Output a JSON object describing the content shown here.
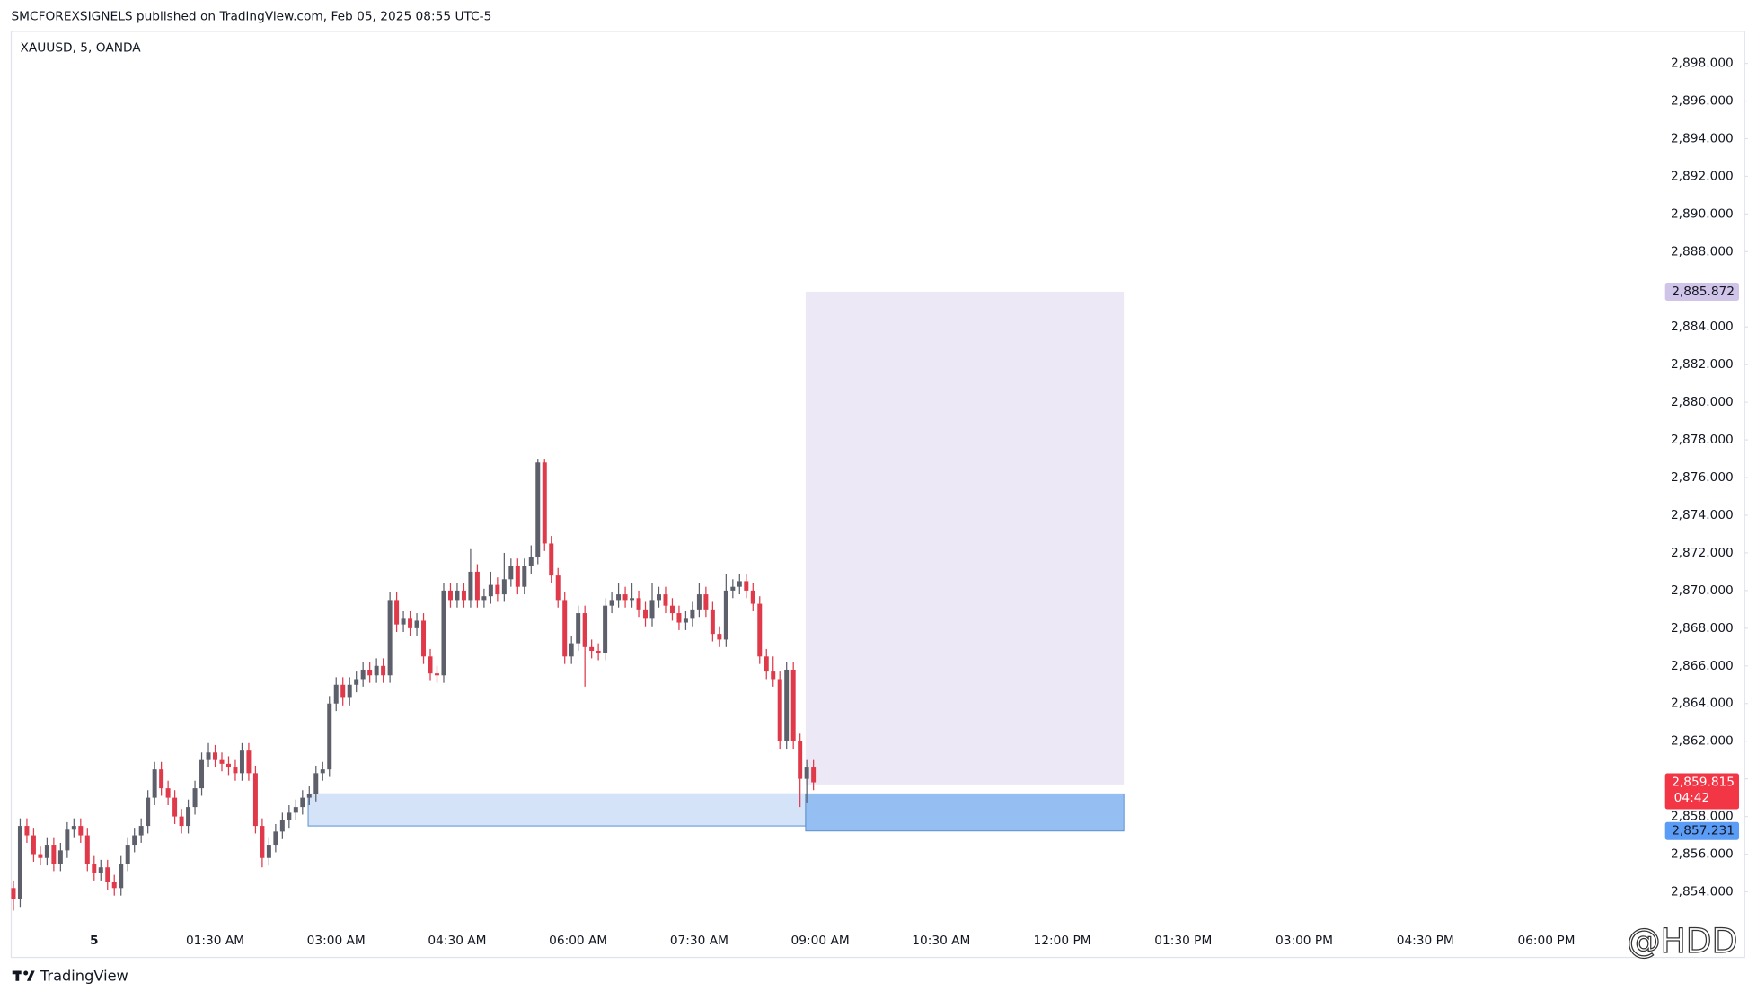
{
  "chart_data": {
    "type": "candlestick",
    "header": "SMCFOREXSIGNELS published on TradingView.com, Feb 05, 2025 08:55 UTC-5",
    "symbol": "XAUUSD, 5, OANDA",
    "footer": "TradingView",
    "watermark": "@HDD",
    "up_color": "#5d606b",
    "down_color": "#e0394a",
    "x_labels": [
      "5",
      "01:30 AM",
      "03:00 AM",
      "04:30 AM",
      "06:00 AM",
      "07:30 AM",
      "09:00 AM",
      "10:30 AM",
      "12:00 PM",
      "01:30 PM",
      "03:00 PM",
      "04:30 PM",
      "06:00 PM"
    ],
    "ylim": [
      2852.3,
      2899.7
    ],
    "yticks": [
      {
        "value": 2854,
        "label": "2,854.000"
      },
      {
        "value": 2856,
        "label": "2,856.000"
      },
      {
        "value": 2858,
        "label": "2,858.000"
      },
      {
        "value": 2860,
        "label": "2,860.000"
      },
      {
        "value": 2862,
        "label": "2,862.000"
      },
      {
        "value": 2864,
        "label": "2,864.000"
      },
      {
        "value": 2866,
        "label": "2,866.000"
      },
      {
        "value": 2868,
        "label": "2,868.000"
      },
      {
        "value": 2870,
        "label": "2,870.000"
      },
      {
        "value": 2872,
        "label": "2,872.000"
      },
      {
        "value": 2874,
        "label": "2,874.000"
      },
      {
        "value": 2876,
        "label": "2,876.000"
      },
      {
        "value": 2878,
        "label": "2,878.000"
      },
      {
        "value": 2880,
        "label": "2,880.000"
      },
      {
        "value": 2882,
        "label": "2,882.000"
      },
      {
        "value": 2884,
        "label": "2,884.000"
      },
      {
        "value": 2888,
        "label": "2,888.000"
      },
      {
        "value": 2890,
        "label": "2,890.000"
      },
      {
        "value": 2892,
        "label": "2,892.000"
      },
      {
        "value": 2894,
        "label": "2,894.000"
      },
      {
        "value": 2896,
        "label": "2,896.000"
      },
      {
        "value": 2898,
        "label": "2,898.000"
      }
    ],
    "open": [
      2854.2,
      2853.6,
      2857.5,
      2857.0,
      2856.0,
      2855.8,
      2856.5,
      2855.5,
      2856.2,
      2857.3,
      2857.5,
      2857.0,
      2855.5,
      2855.0,
      2855.3,
      2854.5,
      2854.2,
      2855.5,
      2856.5,
      2857.0,
      2857.5,
      2859.0,
      2860.5,
      2859.5,
      2859.0,
      2858.0,
      2857.5,
      2858.5,
      2859.5,
      2861.0,
      2861.4,
      2861.0,
      2860.8,
      2860.6,
      2860.3,
      2861.5,
      2860.3,
      2857.5,
      2855.8,
      2856.5,
      2857.2,
      2857.8,
      2858.2,
      2858.5,
      2859.0,
      2859.2,
      2860.3,
      2860.5,
      2864.0,
      2865.0,
      2864.3,
      2865.0,
      2865.3,
      2865.8,
      2865.5,
      2866.0,
      2865.5,
      2869.5,
      2868.2,
      2868.5,
      2868.0,
      2868.4,
      2866.5,
      2865.6,
      2865.5,
      2870.0,
      2869.5,
      2870.0,
      2869.5,
      2871.0,
      2869.5,
      2869.7,
      2870.3,
      2869.8,
      2870.6,
      2871.3,
      2870.2,
      2871.3,
      2871.8,
      2876.8,
      2872.5,
      2870.8,
      2869.5,
      2866.5,
      2867.2,
      2868.8,
      2867.0,
      2866.8,
      2866.7,
      2869.2,
      2869.5,
      2869.8,
      2869.5,
      2869.6,
      2869.0,
      2868.5,
      2869.5,
      2869.8,
      2869.2,
      2868.8,
      2868.3,
      2868.5,
      2869.0,
      2869.8,
      2869.0,
      2867.7,
      2867.4,
      2870.0,
      2870.2,
      2870.5,
      2870.0,
      2869.3,
      2866.5,
      2865.7,
      2865.3,
      2862.0,
      2865.8,
      2862.0,
      2860.0,
      2860.6
    ],
    "high": [
      2854.6,
      2857.9,
      2857.9,
      2857.4,
      2856.4,
      2856.9,
      2856.9,
      2856.6,
      2857.7,
      2857.9,
      2857.9,
      2857.4,
      2855.9,
      2855.7,
      2855.7,
      2854.9,
      2855.9,
      2856.9,
      2857.4,
      2857.9,
      2859.4,
      2860.9,
      2860.9,
      2859.9,
      2859.4,
      2858.4,
      2858.9,
      2859.9,
      2861.4,
      2861.9,
      2861.8,
      2861.4,
      2861.2,
      2861.0,
      2861.9,
      2861.9,
      2860.7,
      2857.9,
      2856.9,
      2857.6,
      2858.2,
      2858.6,
      2858.9,
      2859.4,
      2859.6,
      2860.7,
      2860.9,
      2864.4,
      2865.4,
      2865.4,
      2865.4,
      2865.7,
      2866.2,
      2866.2,
      2866.4,
      2866.4,
      2869.9,
      2869.9,
      2868.9,
      2868.9,
      2868.8,
      2868.8,
      2866.9,
      2866.0,
      2870.4,
      2870.4,
      2870.4,
      2870.4,
      2872.2,
      2871.4,
      2870.1,
      2871.0,
      2870.7,
      2872.0,
      2871.7,
      2871.7,
      2871.7,
      2872.4,
      2877.0,
      2877.0,
      2872.9,
      2871.2,
      2869.9,
      2867.6,
      2869.2,
      2869.2,
      2867.4,
      2867.2,
      2869.6,
      2869.9,
      2870.4,
      2870.2,
      2870.4,
      2870.0,
      2869.4,
      2870.4,
      2870.2,
      2870.2,
      2869.6,
      2869.2,
      2868.9,
      2869.4,
      2870.4,
      2870.2,
      2869.4,
      2868.1,
      2870.9,
      2870.6,
      2870.9,
      2870.9,
      2870.4,
      2869.7,
      2866.9,
      2866.5,
      2865.7,
      2866.2,
      2866.2,
      2862.4,
      2861.0,
      2861.0
    ],
    "low": [
      2853.0,
      2853.2,
      2856.6,
      2855.6,
      2855.4,
      2855.4,
      2855.1,
      2855.1,
      2855.8,
      2856.9,
      2856.6,
      2855.1,
      2854.6,
      2854.6,
      2854.1,
      2853.8,
      2853.8,
      2855.1,
      2856.1,
      2856.6,
      2857.1,
      2858.6,
      2859.1,
      2858.6,
      2857.6,
      2857.1,
      2857.1,
      2858.1,
      2859.1,
      2860.6,
      2860.6,
      2860.4,
      2860.2,
      2859.9,
      2859.9,
      2859.9,
      2857.1,
      2855.3,
      2855.4,
      2856.1,
      2856.8,
      2857.4,
      2857.8,
      2858.1,
      2858.6,
      2858.8,
      2859.9,
      2860.1,
      2863.6,
      2863.9,
      2863.9,
      2864.6,
      2864.9,
      2865.1,
      2865.1,
      2865.1,
      2865.1,
      2867.8,
      2867.8,
      2867.6,
      2867.6,
      2866.1,
      2865.2,
      2865.1,
      2865.1,
      2869.1,
      2869.1,
      2869.1,
      2869.1,
      2869.1,
      2869.1,
      2869.3,
      2869.4,
      2869.4,
      2870.2,
      2869.8,
      2869.8,
      2870.9,
      2871.4,
      2872.1,
      2870.4,
      2869.1,
      2866.1,
      2866.1,
      2866.8,
      2864.9,
      2866.4,
      2866.3,
      2866.3,
      2868.8,
      2869.1,
      2869.1,
      2869.1,
      2868.6,
      2868.1,
      2868.1,
      2869.1,
      2868.8,
      2868.4,
      2867.9,
      2867.9,
      2868.1,
      2868.6,
      2868.6,
      2867.3,
      2867.0,
      2867.0,
      2869.6,
      2869.8,
      2869.6,
      2868.9,
      2866.1,
      2865.3,
      2864.9,
      2861.6,
      2861.6,
      2861.6,
      2858.5,
      2858.7,
      2859.4
    ],
    "close": [
      2853.6,
      2857.5,
      2857.0,
      2856.0,
      2855.8,
      2856.5,
      2855.5,
      2856.2,
      2857.3,
      2857.5,
      2857.0,
      2855.5,
      2855.0,
      2855.3,
      2854.5,
      2854.2,
      2855.5,
      2856.5,
      2857.0,
      2857.5,
      2859.0,
      2860.5,
      2859.5,
      2859.0,
      2858.0,
      2857.5,
      2858.5,
      2859.5,
      2861.0,
      2861.4,
      2861.0,
      2860.8,
      2860.6,
      2860.3,
      2861.5,
      2860.3,
      2857.5,
      2855.8,
      2856.5,
      2857.2,
      2857.8,
      2858.2,
      2858.5,
      2859.0,
      2859.2,
      2860.3,
      2860.5,
      2864.0,
      2865.0,
      2864.3,
      2865.0,
      2865.3,
      2865.8,
      2865.5,
      2866.0,
      2865.5,
      2869.5,
      2868.2,
      2868.5,
      2868.0,
      2868.4,
      2866.5,
      2865.6,
      2865.5,
      2870.0,
      2869.5,
      2870.0,
      2869.5,
      2871.0,
      2869.5,
      2869.7,
      2870.3,
      2869.8,
      2870.6,
      2871.3,
      2870.2,
      2871.3,
      2871.8,
      2876.8,
      2872.5,
      2870.8,
      2869.5,
      2866.5,
      2867.2,
      2868.8,
      2867.0,
      2866.8,
      2866.7,
      2869.2,
      2869.5,
      2869.8,
      2869.5,
      2869.6,
      2869.0,
      2868.5,
      2869.5,
      2869.8,
      2869.2,
      2868.8,
      2868.3,
      2868.5,
      2869.0,
      2869.8,
      2869.0,
      2867.7,
      2867.4,
      2870.0,
      2870.2,
      2870.5,
      2870.0,
      2869.3,
      2866.5,
      2865.7,
      2865.3,
      2862.0,
      2865.8,
      2862.0,
      2860.0,
      2860.6,
      2859.815
    ],
    "zone": {
      "top": 2859.2,
      "bottom": 2857.5,
      "color": "#cfe0f7"
    },
    "target_box": {
      "top": 2885.872,
      "bottom": 2859.7,
      "color": "#ebe6f5"
    },
    "stop_box": {
      "top": 2859.2,
      "bottom": 2857.231,
      "color": "#8ab8f2"
    },
    "price_tags": [
      {
        "value": 2885.872,
        "label": "2,885.872",
        "color": "#d1c4e9",
        "text_color": "#131722"
      },
      {
        "value": 2859.815,
        "label": "2,859.815",
        "sublabel": "04:42",
        "color": "#f23645",
        "text_color": "#ffffff"
      },
      {
        "value": 2857.231,
        "label": "2,857.231",
        "color": "#5b9cf6",
        "text_color": "#131722"
      }
    ]
  }
}
